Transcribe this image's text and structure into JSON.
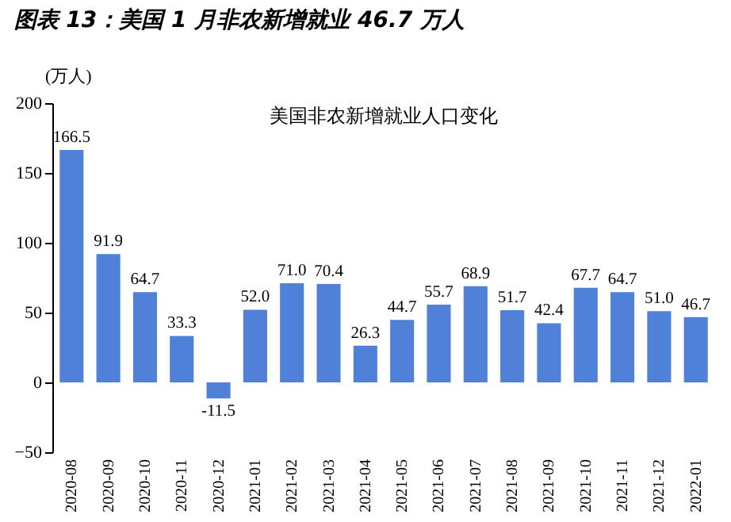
{
  "chart_data": {
    "type": "bar",
    "title": "图表 13：美国 1 月非农新增就业 46.7 万人",
    "subtitle": "美国非农新增就业人口变化",
    "ylabel": "(万人)",
    "categories": [
      "2020-08",
      "2020-09",
      "2020-10",
      "2020-11",
      "2020-12",
      "2021-01",
      "2021-02",
      "2021-03",
      "2021-04",
      "2021-05",
      "2021-06",
      "2021-07",
      "2021-08",
      "2021-09",
      "2021-10",
      "2021-11",
      "2021-12",
      "2022-01"
    ],
    "values": [
      166.5,
      91.9,
      64.7,
      33.3,
      -11.5,
      52.0,
      71.0,
      70.4,
      26.3,
      44.7,
      55.7,
      68.9,
      51.7,
      42.4,
      67.7,
      64.7,
      51.0,
      46.7
    ],
    "value_labels": [
      "166.5",
      "91.9",
      "64.7",
      "33.3",
      "-11.5",
      "52.0",
      "71.0",
      "70.4",
      "26.3",
      "44.7",
      "55.7",
      "68.9",
      "51.7",
      "42.4",
      "67.7",
      "64.7",
      "51.0",
      "46.7"
    ],
    "color": "#4f81d9",
    "ylim": [
      -50,
      200
    ],
    "yticks": [
      -50,
      0,
      50,
      100,
      150,
      200
    ],
    "grid": false
  }
}
